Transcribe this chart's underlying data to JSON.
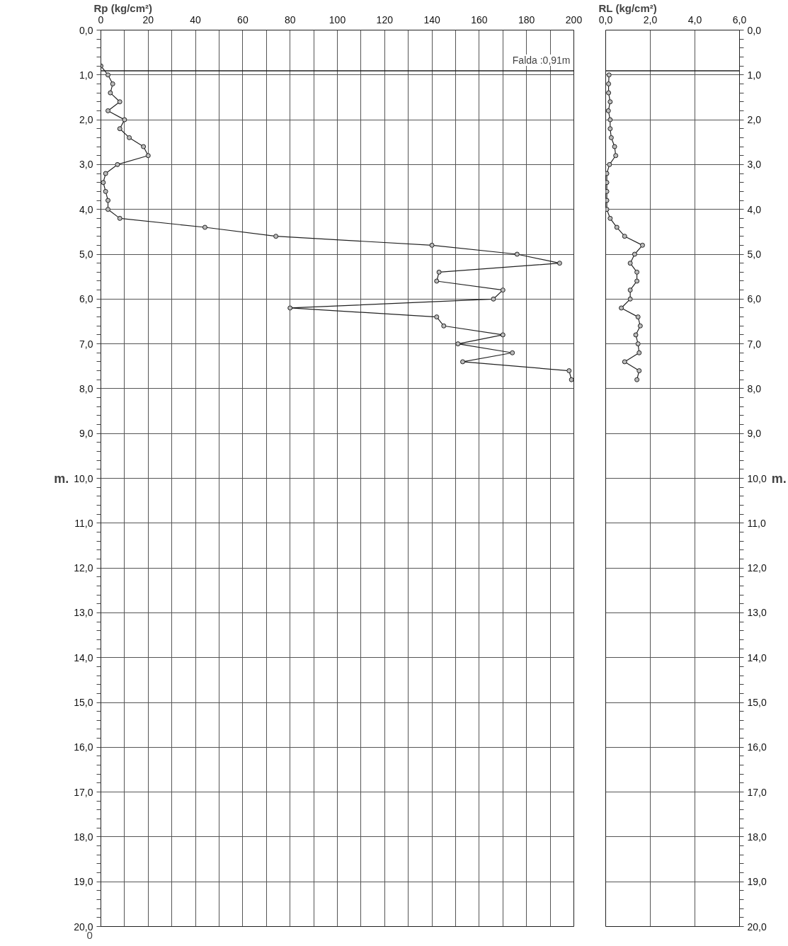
{
  "chart_data": [
    {
      "type": "line",
      "xlabel": "Rp (kg/cm²)",
      "ylabel": "m.",
      "marker": "circle",
      "grid": true,
      "xlim": [
        0,
        200
      ],
      "xticks": [
        0,
        {
          "value": 10,
          "label": null
        },
        20,
        {
          "value": 30,
          "label": null
        },
        40,
        {
          "value": 50,
          "label": null
        },
        60,
        {
          "value": 70,
          "label": null
        },
        80,
        {
          "value": 90,
          "label": null
        },
        100,
        {
          "value": 110,
          "label": null
        },
        120,
        {
          "value": 130,
          "label": null
        },
        140,
        {
          "value": 150,
          "label": null
        },
        160,
        {
          "value": 170,
          "label": null
        },
        180,
        {
          "value": 190,
          "label": null
        },
        200
      ],
      "ylim": [
        20,
        0
      ],
      "yticks": [
        {
          "value": 0,
          "label": "0,0"
        },
        {
          "value": 0.2,
          "label": null
        },
        {
          "value": 0.4,
          "label": null
        },
        {
          "value": 0.6,
          "label": null
        },
        {
          "value": 0.8,
          "label": null
        },
        {
          "value": 1,
          "label": "1,0"
        },
        {
          "value": 1.2,
          "label": null
        },
        {
          "value": 1.4,
          "label": null
        },
        {
          "value": 1.6,
          "label": null
        },
        {
          "value": 1.8,
          "label": null
        },
        {
          "value": 2,
          "label": "2,0"
        },
        {
          "value": 2.2,
          "label": null
        },
        {
          "value": 2.4,
          "label": null
        },
        {
          "value": 2.6,
          "label": null
        },
        {
          "value": 2.8,
          "label": null
        },
        {
          "value": 3,
          "label": "3,0"
        },
        {
          "value": 3.2,
          "label": null
        },
        {
          "value": 3.4,
          "label": null
        },
        {
          "value": 3.6,
          "label": null
        },
        {
          "value": 3.8,
          "label": null
        },
        {
          "value": 4,
          "label": "4,0"
        },
        {
          "value": 4.2,
          "label": null
        },
        {
          "value": 4.4,
          "label": null
        },
        {
          "value": 4.6,
          "label": null
        },
        {
          "value": 4.8,
          "label": null
        },
        {
          "value": 5,
          "label": "5,0"
        },
        {
          "value": 5.2,
          "label": null
        },
        {
          "value": 5.4,
          "label": null
        },
        {
          "value": 5.6,
          "label": null
        },
        {
          "value": 5.8,
          "label": null
        },
        {
          "value": 6,
          "label": "6,0"
        },
        {
          "value": 6.2,
          "label": null
        },
        {
          "value": 6.4,
          "label": null
        },
        {
          "value": 6.6,
          "label": null
        },
        {
          "value": 6.8,
          "label": null
        },
        {
          "value": 7,
          "label": "7,0"
        },
        {
          "value": 7.2,
          "label": null
        },
        {
          "value": 7.4,
          "label": null
        },
        {
          "value": 7.6,
          "label": null
        },
        {
          "value": 7.8,
          "label": null
        },
        {
          "value": 8,
          "label": "8,0"
        },
        {
          "value": 8.2,
          "label": null
        },
        {
          "value": 8.4,
          "label": null
        },
        {
          "value": 8.6,
          "label": null
        },
        {
          "value": 8.8,
          "label": null
        },
        {
          "value": 9,
          "label": "9,0"
        },
        {
          "value": 9.2,
          "label": null
        },
        {
          "value": 9.4,
          "label": null
        },
        {
          "value": 9.6,
          "label": null
        },
        {
          "value": 9.8,
          "label": null
        },
        {
          "value": 10,
          "label": "10,0"
        },
        {
          "value": 10.2,
          "label": null
        },
        {
          "value": 10.4,
          "label": null
        },
        {
          "value": 10.6,
          "label": null
        },
        {
          "value": 10.8,
          "label": null
        },
        {
          "value": 11,
          "label": "11,0"
        },
        {
          "value": 11.2,
          "label": null
        },
        {
          "value": 11.4,
          "label": null
        },
        {
          "value": 11.6,
          "label": null
        },
        {
          "value": 11.8,
          "label": null
        },
        {
          "value": 12,
          "label": "12,0"
        },
        {
          "value": 12.2,
          "label": null
        },
        {
          "value": 12.4,
          "label": null
        },
        {
          "value": 12.6,
          "label": null
        },
        {
          "value": 12.8,
          "label": null
        },
        {
          "value": 13,
          "label": "13,0"
        },
        {
          "value": 13.2,
          "label": null
        },
        {
          "value": 13.4,
          "label": null
        },
        {
          "value": 13.6,
          "label": null
        },
        {
          "value": 13.8,
          "label": null
        },
        {
          "value": 14,
          "label": "14,0"
        },
        {
          "value": 14.2,
          "label": null
        },
        {
          "value": 14.4,
          "label": null
        },
        {
          "value": 14.6,
          "label": null
        },
        {
          "value": 14.8,
          "label": null
        },
        {
          "value": 15,
          "label": "15,0"
        },
        {
          "value": 15.2,
          "label": null
        },
        {
          "value": 15.4,
          "label": null
        },
        {
          "value": 15.6,
          "label": null
        },
        {
          "value": 15.8,
          "label": null
        },
        {
          "value": 16,
          "label": "16,0"
        },
        {
          "value": 16.2,
          "label": null
        },
        {
          "value": 16.4,
          "label": null
        },
        {
          "value": 16.6,
          "label": null
        },
        {
          "value": 16.8,
          "label": null
        },
        {
          "value": 17,
          "label": "17,0"
        },
        {
          "value": 17.2,
          "label": null
        },
        {
          "value": 17.4,
          "label": null
        },
        {
          "value": 17.6,
          "label": null
        },
        {
          "value": 17.8,
          "label": null
        },
        {
          "value": 18,
          "label": "18,0"
        },
        {
          "value": 18.2,
          "label": null
        },
        {
          "value": 18.4,
          "label": null
        },
        {
          "value": 18.6,
          "label": null
        },
        {
          "value": 18.8,
          "label": null
        },
        {
          "value": 19,
          "label": "19,0"
        },
        {
          "value": 19.2,
          "label": null
        },
        {
          "value": 19.4,
          "label": null
        },
        {
          "value": 19.6,
          "label": null
        },
        {
          "value": 19.8,
          "label": null
        },
        {
          "value": 20,
          "label": "20,0"
        }
      ],
      "series": [
        {
          "color": "#222222",
          "x": [
            0,
            3,
            5,
            4,
            8,
            3,
            10,
            8,
            12,
            18,
            20,
            7,
            2,
            1,
            2,
            3,
            3,
            8,
            44,
            74,
            140,
            176,
            194,
            143,
            142,
            170,
            166,
            80,
            142,
            145,
            170,
            151,
            174,
            153,
            198,
            199
          ],
          "values": [
            0.8,
            1.0,
            1.2,
            1.4,
            1.6,
            1.8,
            2.0,
            2.2,
            2.4,
            2.6,
            2.8,
            3.0,
            3.2,
            3.4,
            3.6,
            3.8,
            4.0,
            4.2,
            4.4,
            4.6,
            4.8,
            5.0,
            5.2,
            5.4,
            5.6,
            5.8,
            6.0,
            6.2,
            6.4,
            6.6,
            6.8,
            7.0,
            7.2,
            7.4,
            7.6,
            7.8
          ]
        }
      ],
      "ref_lines": [
        {
          "axis": "y",
          "value": 0.91,
          "label": "Falda :0,91m",
          "color": "#222222"
        }
      ],
      "annotations": [
        "0"
      ]
    },
    {
      "type": "line",
      "xlabel": "RL (kg/cm²)",
      "y2label": "m.",
      "marker": "circle",
      "grid": true,
      "xlim": [
        0,
        6
      ],
      "xticks": [
        {
          "value": 0,
          "label": "0,0"
        },
        {
          "value": 2,
          "label": "2,0"
        },
        {
          "value": 4,
          "label": "4,0"
        },
        {
          "value": 6,
          "label": "6,0"
        }
      ],
      "y2lim": [
        20,
        0
      ],
      "y2ticks": [
        {
          "value": 0,
          "label": "0,0"
        },
        {
          "value": 0.2,
          "label": null
        },
        {
          "value": 0.4,
          "label": null
        },
        {
          "value": 0.6,
          "label": null
        },
        {
          "value": 0.8,
          "label": null
        },
        {
          "value": 1,
          "label": "1,0"
        },
        {
          "value": 1.2,
          "label": null
        },
        {
          "value": 1.4,
          "label": null
        },
        {
          "value": 1.6,
          "label": null
        },
        {
          "value": 1.8,
          "label": null
        },
        {
          "value": 2,
          "label": "2,0"
        },
        {
          "value": 2.2,
          "label": null
        },
        {
          "value": 2.4,
          "label": null
        },
        {
          "value": 2.6,
          "label": null
        },
        {
          "value": 2.8,
          "label": null
        },
        {
          "value": 3,
          "label": "3,0"
        },
        {
          "value": 3.2,
          "label": null
        },
        {
          "value": 3.4,
          "label": null
        },
        {
          "value": 3.6,
          "label": null
        },
        {
          "value": 3.8,
          "label": null
        },
        {
          "value": 4,
          "label": "4,0"
        },
        {
          "value": 4.2,
          "label": null
        },
        {
          "value": 4.4,
          "label": null
        },
        {
          "value": 4.6,
          "label": null
        },
        {
          "value": 4.8,
          "label": null
        },
        {
          "value": 5,
          "label": "5,0"
        },
        {
          "value": 5.2,
          "label": null
        },
        {
          "value": 5.4,
          "label": null
        },
        {
          "value": 5.6,
          "label": null
        },
        {
          "value": 5.8,
          "label": null
        },
        {
          "value": 6,
          "label": "6,0"
        },
        {
          "value": 6.2,
          "label": null
        },
        {
          "value": 6.4,
          "label": null
        },
        {
          "value": 6.6,
          "label": null
        },
        {
          "value": 6.8,
          "label": null
        },
        {
          "value": 7,
          "label": "7,0"
        },
        {
          "value": 7.2,
          "label": null
        },
        {
          "value": 7.4,
          "label": null
        },
        {
          "value": 7.6,
          "label": null
        },
        {
          "value": 7.8,
          "label": null
        },
        {
          "value": 8,
          "label": "8,0"
        },
        {
          "value": 8.2,
          "label": null
        },
        {
          "value": 8.4,
          "label": null
        },
        {
          "value": 8.6,
          "label": null
        },
        {
          "value": 8.8,
          "label": null
        },
        {
          "value": 9,
          "label": "9,0"
        },
        {
          "value": 9.2,
          "label": null
        },
        {
          "value": 9.4,
          "label": null
        },
        {
          "value": 9.6,
          "label": null
        },
        {
          "value": 9.8,
          "label": null
        },
        {
          "value": 10,
          "label": "10,0"
        },
        {
          "value": 10.2,
          "label": null
        },
        {
          "value": 10.4,
          "label": null
        },
        {
          "value": 10.6,
          "label": null
        },
        {
          "value": 10.8,
          "label": null
        },
        {
          "value": 11,
          "label": "11,0"
        },
        {
          "value": 11.2,
          "label": null
        },
        {
          "value": 11.4,
          "label": null
        },
        {
          "value": 11.6,
          "label": null
        },
        {
          "value": 11.8,
          "label": null
        },
        {
          "value": 12,
          "label": "12,0"
        },
        {
          "value": 12.2,
          "label": null
        },
        {
          "value": 12.4,
          "label": null
        },
        {
          "value": 12.6,
          "label": null
        },
        {
          "value": 12.8,
          "label": null
        },
        {
          "value": 13,
          "label": "13,0"
        },
        {
          "value": 13.2,
          "label": null
        },
        {
          "value": 13.4,
          "label": null
        },
        {
          "value": 13.6,
          "label": null
        },
        {
          "value": 13.8,
          "label": null
        },
        {
          "value": 14,
          "label": "14,0"
        },
        {
          "value": 14.2,
          "label": null
        },
        {
          "value": 14.4,
          "label": null
        },
        {
          "value": 14.6,
          "label": null
        },
        {
          "value": 14.8,
          "label": null
        },
        {
          "value": 15,
          "label": "15,0"
        },
        {
          "value": 15.2,
          "label": null
        },
        {
          "value": 15.4,
          "label": null
        },
        {
          "value": 15.6,
          "label": null
        },
        {
          "value": 15.8,
          "label": null
        },
        {
          "value": 16,
          "label": "16,0"
        },
        {
          "value": 16.2,
          "label": null
        },
        {
          "value": 16.4,
          "label": null
        },
        {
          "value": 16.6,
          "label": null
        },
        {
          "value": 16.8,
          "label": null
        },
        {
          "value": 17,
          "label": "17,0"
        },
        {
          "value": 17.2,
          "label": null
        },
        {
          "value": 17.4,
          "label": null
        },
        {
          "value": 17.6,
          "label": null
        },
        {
          "value": 17.8,
          "label": null
        },
        {
          "value": 18,
          "label": "18,0"
        },
        {
          "value": 18.2,
          "label": null
        },
        {
          "value": 18.4,
          "label": null
        },
        {
          "value": 18.6,
          "label": null
        },
        {
          "value": 18.8,
          "label": null
        },
        {
          "value": 19,
          "label": "19,0"
        },
        {
          "value": 19.2,
          "label": null
        },
        {
          "value": 19.4,
          "label": null
        },
        {
          "value": 19.6,
          "label": null
        },
        {
          "value": 19.8,
          "label": null
        },
        {
          "value": 20,
          "label": "20,0"
        }
      ],
      "series": [
        {
          "color": "#222222",
          "axis": "y2",
          "x": [
            0.15,
            0.13,
            0.13,
            0.2,
            0.12,
            0.2,
            0.2,
            0.25,
            0.4,
            0.45,
            0.17,
            0.05,
            0.05,
            0.05,
            0.05,
            0.05,
            0.2,
            0.5,
            0.85,
            1.65,
            1.3,
            1.1,
            1.4,
            1.4,
            1.1,
            1.1,
            0.7,
            1.45,
            1.55,
            1.35,
            1.45,
            1.5,
            0.85,
            1.5,
            1.4
          ],
          "values": [
            1.0,
            1.2,
            1.4,
            1.6,
            1.8,
            2.0,
            2.2,
            2.4,
            2.6,
            2.8,
            3.0,
            3.2,
            3.4,
            3.6,
            3.8,
            4.0,
            4.2,
            4.4,
            4.6,
            4.8,
            5.0,
            5.2,
            5.4,
            5.6,
            5.8,
            6.0,
            6.2,
            6.4,
            6.6,
            6.8,
            7.0,
            7.2,
            7.4,
            7.6,
            7.8
          ]
        }
      ],
      "ref_lines": [
        {
          "axis": "y2",
          "value": 0.91,
          "color": "#222222"
        }
      ]
    }
  ]
}
